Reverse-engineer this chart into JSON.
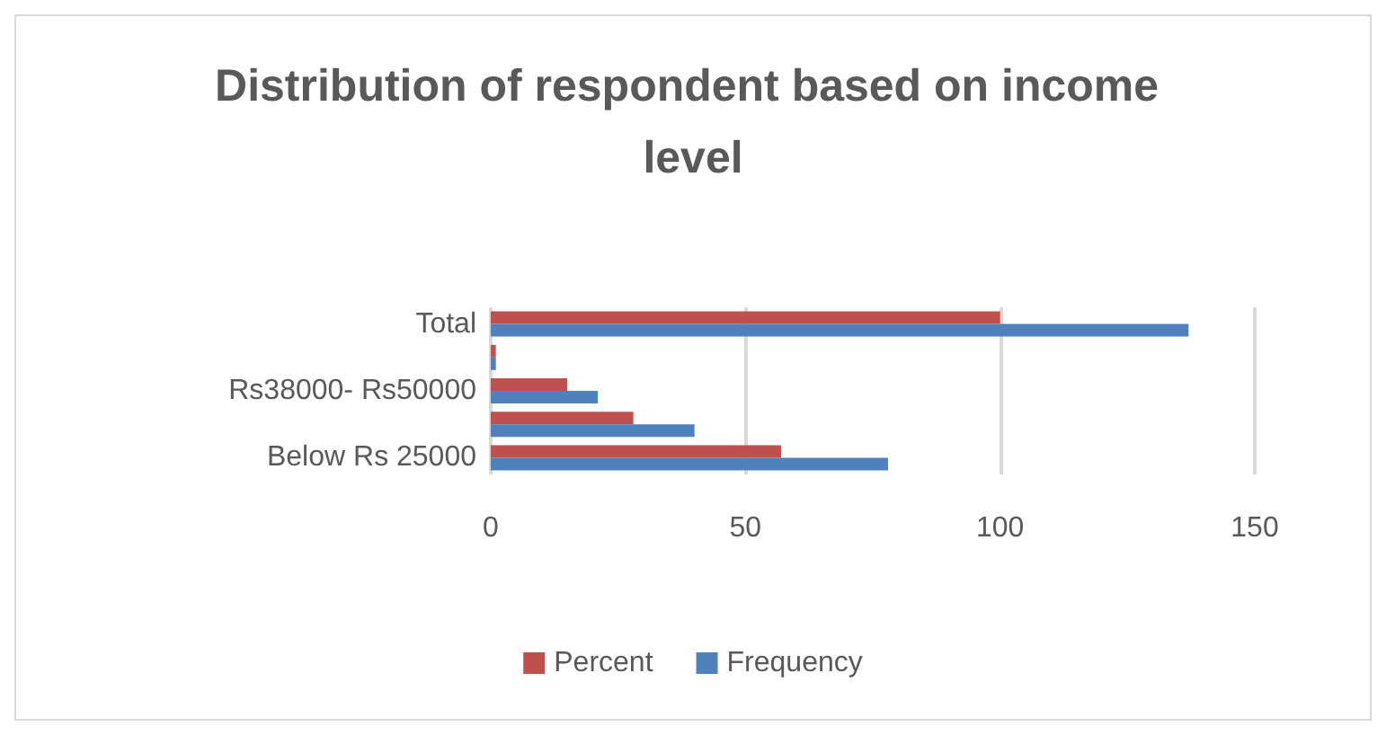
{
  "chart_data": {
    "type": "bar",
    "orientation": "horizontal",
    "title": "Distribution of respondent based on income level",
    "categories": [
      "Total",
      null,
      "Rs38000- Rs50000",
      null,
      "Below Rs 25000"
    ],
    "series": [
      {
        "name": "Percent",
        "color": "#c0504d",
        "values": [
          100,
          1,
          15,
          28,
          57
        ]
      },
      {
        "name": "Frequency",
        "color": "#4f81bd",
        "values": [
          137,
          1,
          21,
          40,
          78
        ]
      }
    ],
    "xlim": [
      0,
      150
    ],
    "xticks": [
      0,
      50,
      100,
      150
    ],
    "grid": "x",
    "legend": "bottom"
  }
}
